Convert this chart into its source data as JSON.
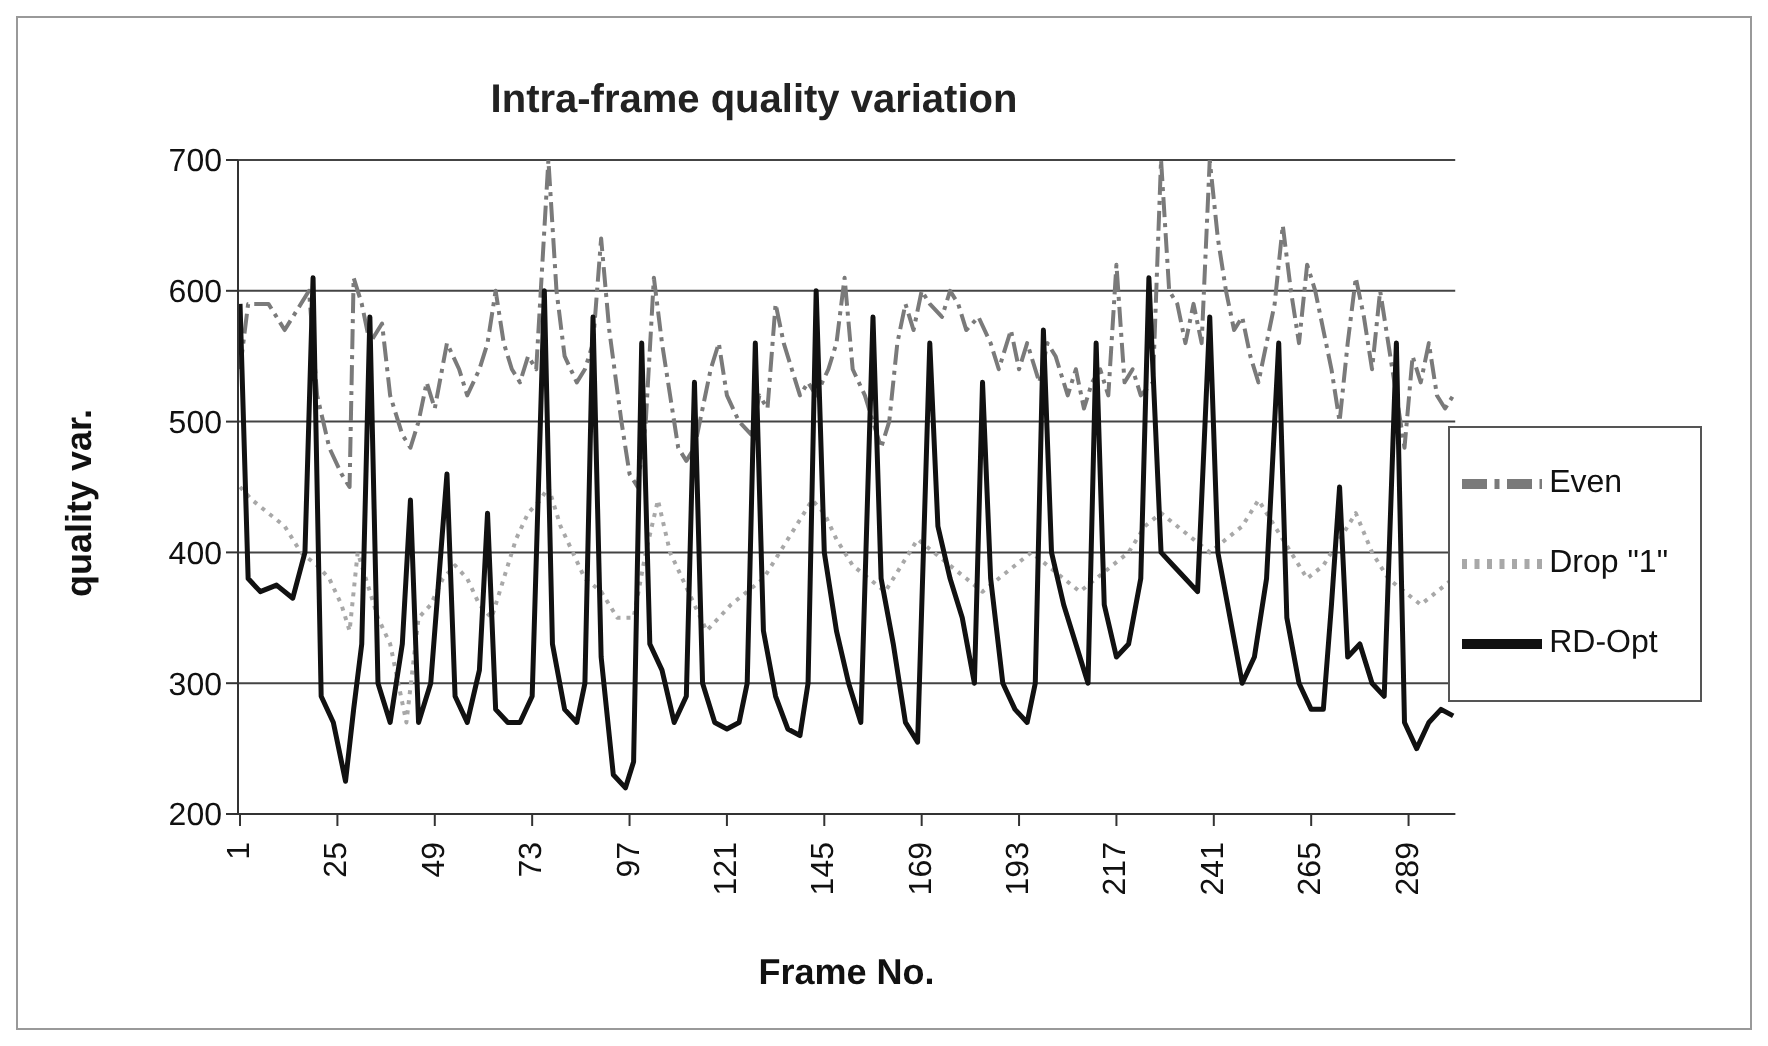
{
  "chart_data": {
    "type": "line",
    "title": "Intra-frame quality variation",
    "xlabel": "Frame No.",
    "ylabel": "quality var.",
    "xlim": [
      0.5,
      300.5
    ],
    "xticks": [
      1,
      25,
      49,
      73,
      97,
      121,
      145,
      169,
      193,
      217,
      241,
      265,
      289
    ],
    "ylim": [
      200,
      700
    ],
    "yticks": [
      200,
      300,
      400,
      500,
      600,
      700
    ],
    "grid": "y",
    "legend": "right",
    "marker": "none",
    "series": [
      {
        "name": "Even",
        "color": "#7a7a7a",
        "line_style": "dashed",
        "x": [
          1,
          3,
          8,
          12,
          15,
          18,
          20,
          23,
          26,
          28,
          29,
          31,
          33,
          36,
          38,
          41,
          43,
          45,
          47,
          49,
          52,
          55,
          57,
          60,
          62,
          64,
          66,
          68,
          70,
          72,
          74,
          77,
          79,
          81,
          84,
          86,
          88,
          90,
          92,
          95,
          97,
          99,
          101,
          103,
          105,
          107,
          109,
          111,
          113,
          115,
          117,
          119,
          121,
          124,
          127,
          129,
          131,
          133,
          135,
          137,
          139,
          141,
          143,
          146,
          148,
          150,
          152,
          155,
          157,
          159,
          161,
          163,
          165,
          167,
          169,
          171,
          174,
          176,
          178,
          180,
          183,
          186,
          188,
          191,
          193,
          195,
          198,
          200,
          202,
          205,
          207,
          209,
          211,
          213,
          215,
          217,
          219,
          221,
          223,
          226,
          228,
          230,
          232,
          234,
          236,
          238,
          240,
          242,
          244,
          246,
          248,
          250,
          252,
          254,
          256,
          258,
          260,
          262,
          264,
          266,
          268,
          270,
          272,
          274,
          276,
          278,
          280,
          282,
          284,
          286,
          288,
          290,
          292,
          294,
          296,
          298,
          300
        ],
        "values": [
          540,
          590,
          590,
          570,
          585,
          600,
          520,
          480,
          460,
          450,
          610,
          590,
          560,
          575,
          520,
          490,
          480,
          500,
          530,
          510,
          560,
          540,
          520,
          540,
          560,
          600,
          560,
          540,
          530,
          550,
          540,
          700,
          600,
          550,
          530,
          540,
          560,
          640,
          570,
          500,
          460,
          450,
          500,
          610,
          560,
          520,
          480,
          470,
          480,
          510,
          540,
          560,
          520,
          500,
          490,
          520,
          510,
          590,
          560,
          540,
          520,
          530,
          520,
          540,
          560,
          610,
          540,
          520,
          500,
          480,
          500,
          560,
          590,
          570,
          600,
          590,
          580,
          600,
          590,
          570,
          580,
          560,
          540,
          570,
          540,
          560,
          530,
          560,
          550,
          520,
          540,
          510,
          530,
          540,
          520,
          620,
          530,
          540,
          520,
          530,
          700,
          600,
          590,
          560,
          590,
          560,
          700,
          640,
          600,
          570,
          580,
          550,
          530,
          560,
          590,
          650,
          600,
          560,
          620,
          600,
          570,
          540,
          500,
          560,
          610,
          580,
          540,
          600,
          560,
          520,
          480,
          550,
          530,
          560,
          520,
          510,
          520
        ]
      },
      {
        "name": "Drop \"1\"",
        "color": "#a8a8a8",
        "line_style": "dotted",
        "x": [
          1,
          4,
          8,
          12,
          16,
          20,
          23,
          26,
          28,
          30,
          32,
          35,
          38,
          40,
          42,
          45,
          48,
          51,
          54,
          57,
          60,
          63,
          66,
          69,
          72,
          75,
          77,
          80,
          83,
          86,
          90,
          94,
          98,
          101,
          104,
          107,
          110,
          113,
          116,
          119,
          122,
          126,
          130,
          134,
          138,
          142,
          145,
          148,
          152,
          156,
          160,
          164,
          168,
          172,
          176,
          180,
          184,
          188,
          192,
          196,
          200,
          204,
          208,
          212,
          216,
          220,
          224,
          228,
          232,
          236,
          240,
          244,
          248,
          252,
          256,
          260,
          264,
          268,
          272,
          276,
          280,
          284,
          288,
          292,
          296,
          300
        ],
        "values": [
          450,
          440,
          430,
          420,
          400,
          390,
          380,
          360,
          340,
          400,
          380,
          350,
          330,
          300,
          270,
          350,
          360,
          380,
          390,
          380,
          360,
          350,
          380,
          410,
          430,
          440,
          450,
          420,
          400,
          380,
          370,
          350,
          350,
          400,
          440,
          400,
          380,
          360,
          340,
          350,
          360,
          370,
          380,
          400,
          420,
          440,
          430,
          410,
          390,
          380,
          370,
          390,
          410,
          400,
          390,
          380,
          370,
          380,
          390,
          400,
          390,
          380,
          370,
          380,
          390,
          400,
          420,
          430,
          420,
          410,
          400,
          410,
          420,
          440,
          420,
          400,
          380,
          390,
          410,
          430,
          400,
          380,
          370,
          360,
          370,
          380
        ]
      },
      {
        "name": "RD-Opt",
        "color": "#111111",
        "line_style": "solid",
        "x": [
          1,
          3,
          6,
          10,
          14,
          17,
          19,
          21,
          24,
          27,
          29,
          31,
          33,
          35,
          38,
          41,
          43,
          45,
          48,
          52,
          54,
          57,
          60,
          62,
          64,
          67,
          70,
          73,
          76,
          78,
          81,
          84,
          86,
          88,
          90,
          93,
          96,
          98,
          100,
          102,
          105,
          108,
          111,
          113,
          115,
          118,
          121,
          124,
          126,
          128,
          130,
          133,
          136,
          139,
          141,
          143,
          145,
          148,
          151,
          154,
          157,
          159,
          162,
          165,
          168,
          171,
          173,
          176,
          179,
          182,
          184,
          186,
          189,
          192,
          195,
          197,
          199,
          201,
          204,
          207,
          210,
          212,
          214,
          217,
          220,
          223,
          225,
          228,
          231,
          234,
          237,
          240,
          242,
          245,
          248,
          251,
          254,
          257,
          259,
          262,
          265,
          268,
          270,
          272,
          274,
          277,
          280,
          283,
          286,
          288,
          291,
          294,
          297,
          300
        ],
        "values": [
          590,
          380,
          370,
          375,
          365,
          400,
          610,
          290,
          270,
          225,
          280,
          330,
          580,
          300,
          270,
          330,
          440,
          270,
          300,
          460,
          290,
          270,
          310,
          430,
          280,
          270,
          270,
          290,
          600,
          330,
          280,
          270,
          300,
          580,
          320,
          230,
          220,
          240,
          560,
          330,
          310,
          270,
          290,
          530,
          300,
          270,
          265,
          270,
          300,
          560,
          340,
          290,
          265,
          260,
          300,
          600,
          400,
          340,
          300,
          270,
          580,
          380,
          330,
          270,
          255,
          560,
          420,
          380,
          350,
          300,
          530,
          380,
          300,
          280,
          270,
          300,
          570,
          400,
          360,
          330,
          300,
          560,
          360,
          320,
          330,
          380,
          610,
          400,
          390,
          380,
          370,
          580,
          400,
          350,
          300,
          320,
          380,
          560,
          350,
          300,
          280,
          280,
          360,
          450,
          320,
          330,
          300,
          290,
          560,
          270,
          250,
          270,
          280,
          275
        ]
      }
    ]
  }
}
